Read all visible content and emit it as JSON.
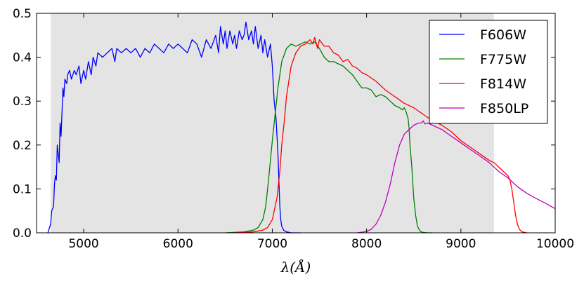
{
  "chart_data": {
    "type": "line",
    "xlabel": "λ(Å)",
    "ylabel": "",
    "xlim": [
      4500,
      10000
    ],
    "ylim": [
      0.0,
      0.5
    ],
    "x_ticks": [
      5000,
      6000,
      7000,
      8000,
      9000,
      10000
    ],
    "y_ticks": [
      0.0,
      0.1,
      0.2,
      0.3,
      0.4,
      0.5
    ],
    "x_tick_labels": [
      "5000",
      "6000",
      "7000",
      "8000",
      "9000",
      "10000"
    ],
    "y_tick_labels": [
      "0.0",
      "0.1",
      "0.2",
      "0.3",
      "0.4",
      "0.5"
    ],
    "shaded_region": {
      "x": [
        4650,
        9350
      ],
      "color": "#e4e4e4"
    },
    "grid": false,
    "legend_placement": "top-right",
    "series": [
      {
        "name": "F606W",
        "color": "#0000ff",
        "x": [
          4620,
          4650,
          4660,
          4680,
          4690,
          4700,
          4710,
          4720,
          4740,
          4750,
          4760,
          4780,
          4790,
          4800,
          4820,
          4830,
          4850,
          4870,
          4900,
          4920,
          4950,
          4970,
          5000,
          5020,
          5050,
          5080,
          5100,
          5130,
          5150,
          5200,
          5250,
          5300,
          5330,
          5350,
          5400,
          5450,
          5500,
          5550,
          5600,
          5650,
          5700,
          5750,
          5800,
          5850,
          5900,
          5950,
          6000,
          6050,
          6100,
          6150,
          6200,
          6250,
          6300,
          6350,
          6400,
          6430,
          6450,
          6480,
          6500,
          6520,
          6550,
          6580,
          6600,
          6620,
          6650,
          6680,
          6700,
          6720,
          6750,
          6780,
          6800,
          6820,
          6850,
          6880,
          6900,
          6920,
          6950,
          6980,
          7000,
          7020,
          7040,
          7060,
          7070,
          7080,
          7090,
          7100,
          7120,
          7150,
          7180,
          7200,
          7250,
          7300
        ],
        "y": [
          0.0,
          0.02,
          0.05,
          0.06,
          0.11,
          0.13,
          0.12,
          0.2,
          0.16,
          0.25,
          0.22,
          0.33,
          0.31,
          0.35,
          0.34,
          0.36,
          0.37,
          0.35,
          0.37,
          0.36,
          0.38,
          0.34,
          0.37,
          0.35,
          0.39,
          0.36,
          0.4,
          0.38,
          0.41,
          0.4,
          0.41,
          0.42,
          0.39,
          0.42,
          0.41,
          0.42,
          0.41,
          0.42,
          0.4,
          0.42,
          0.41,
          0.43,
          0.42,
          0.41,
          0.43,
          0.42,
          0.43,
          0.42,
          0.41,
          0.44,
          0.43,
          0.4,
          0.44,
          0.42,
          0.45,
          0.41,
          0.47,
          0.43,
          0.46,
          0.42,
          0.46,
          0.43,
          0.45,
          0.42,
          0.46,
          0.44,
          0.45,
          0.48,
          0.44,
          0.46,
          0.43,
          0.47,
          0.42,
          0.45,
          0.41,
          0.44,
          0.4,
          0.43,
          0.38,
          0.3,
          0.26,
          0.18,
          0.12,
          0.06,
          0.03,
          0.015,
          0.006,
          0.002,
          0.001,
          0.0,
          0.0,
          0.0
        ]
      },
      {
        "name": "F775W",
        "color": "#008000",
        "x": [
          6500,
          6700,
          6800,
          6850,
          6900,
          6930,
          6960,
          7000,
          7030,
          7060,
          7100,
          7150,
          7200,
          7250,
          7300,
          7350,
          7400,
          7450,
          7500,
          7550,
          7600,
          7650,
          7700,
          7750,
          7800,
          7850,
          7900,
          7950,
          8000,
          8050,
          8100,
          8150,
          8200,
          8250,
          8300,
          8350,
          8380,
          8400,
          8420,
          8440,
          8450,
          8460,
          8480,
          8500,
          8520,
          8540,
          8560,
          8580,
          8600,
          8650,
          8700
        ],
        "y": [
          0.0,
          0.002,
          0.006,
          0.012,
          0.03,
          0.06,
          0.12,
          0.21,
          0.27,
          0.33,
          0.39,
          0.42,
          0.43,
          0.425,
          0.43,
          0.435,
          0.43,
          0.435,
          0.42,
          0.4,
          0.39,
          0.39,
          0.385,
          0.38,
          0.37,
          0.36,
          0.345,
          0.33,
          0.33,
          0.325,
          0.31,
          0.315,
          0.31,
          0.3,
          0.29,
          0.285,
          0.28,
          0.285,
          0.275,
          0.26,
          0.24,
          0.2,
          0.15,
          0.08,
          0.04,
          0.015,
          0.006,
          0.002,
          0.001,
          0.0,
          0.0
        ]
      },
      {
        "name": "F814W",
        "color": "#ff0000",
        "x": [
          6600,
          6800,
          6900,
          6950,
          7000,
          7050,
          7080,
          7100,
          7130,
          7150,
          7200,
          7250,
          7300,
          7350,
          7400,
          7430,
          7450,
          7480,
          7500,
          7550,
          7600,
          7650,
          7700,
          7750,
          7800,
          7850,
          7900,
          7950,
          8000,
          8100,
          8200,
          8300,
          8400,
          8500,
          8600,
          8700,
          8800,
          8900,
          9000,
          9100,
          9200,
          9300,
          9350,
          9400,
          9450,
          9500,
          9520,
          9540,
          9560,
          9580,
          9600,
          9620,
          9650,
          9700
        ],
        "y": [
          0.0,
          0.002,
          0.006,
          0.012,
          0.03,
          0.08,
          0.14,
          0.2,
          0.26,
          0.31,
          0.38,
          0.41,
          0.425,
          0.43,
          0.44,
          0.43,
          0.445,
          0.42,
          0.44,
          0.425,
          0.425,
          0.41,
          0.405,
          0.39,
          0.395,
          0.38,
          0.375,
          0.365,
          0.36,
          0.345,
          0.325,
          0.31,
          0.295,
          0.285,
          0.27,
          0.255,
          0.245,
          0.23,
          0.21,
          0.195,
          0.18,
          0.165,
          0.16,
          0.15,
          0.14,
          0.13,
          0.12,
          0.1,
          0.07,
          0.04,
          0.02,
          0.008,
          0.002,
          0.0
        ]
      },
      {
        "name": "F850LP",
        "color": "#bf00bf",
        "x": [
          7900,
          8000,
          8050,
          8100,
          8150,
          8200,
          8250,
          8300,
          8350,
          8400,
          8450,
          8500,
          8550,
          8580,
          8600,
          8620,
          8650,
          8700,
          8800,
          8900,
          9000,
          9100,
          9200,
          9300,
          9400,
          9500,
          9600,
          9700,
          9800,
          9900,
          10000
        ],
        "y": [
          0.0,
          0.003,
          0.008,
          0.02,
          0.04,
          0.07,
          0.11,
          0.16,
          0.2,
          0.225,
          0.235,
          0.245,
          0.25,
          0.25,
          0.255,
          0.248,
          0.25,
          0.245,
          0.235,
          0.22,
          0.205,
          0.19,
          0.175,
          0.16,
          0.14,
          0.125,
          0.105,
          0.09,
          0.078,
          0.067,
          0.055
        ]
      }
    ]
  }
}
